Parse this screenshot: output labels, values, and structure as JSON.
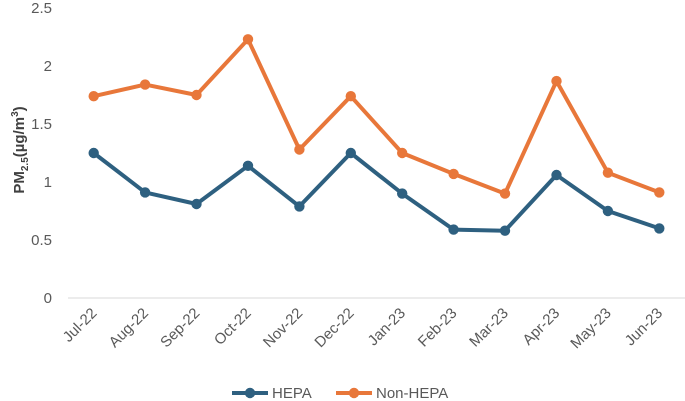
{
  "chart_data": {
    "type": "line",
    "title": "",
    "xlabel": "",
    "ylabel": "PM2.5(µg/m3)",
    "ylabel_parts": {
      "main": "PM",
      "sub": "2.5",
      "unit_open": "(µg/m",
      "sup": "3",
      "unit_close": ")"
    },
    "ylim": [
      0,
      2.5
    ],
    "yticks": [
      "0",
      "0.5",
      "1",
      "1.5",
      "2",
      "2.5"
    ],
    "categories": [
      "Jul-22",
      "Aug-22",
      "Sep-22",
      "Oct-22",
      "Nov-22",
      "Dec-22",
      "Jan-23",
      "Feb-23",
      "Mar-23",
      "Apr-23",
      "May-23",
      "Jun-23"
    ],
    "series": [
      {
        "name": "HEPA",
        "color": "#2e6080",
        "values": [
          1.25,
          0.91,
          0.81,
          1.14,
          0.79,
          1.25,
          0.9,
          0.59,
          0.58,
          1.06,
          0.75,
          0.6
        ]
      },
      {
        "name": "Non-HEPA",
        "color": "#e8773a",
        "values": [
          1.74,
          1.84,
          1.75,
          2.23,
          1.28,
          1.74,
          1.25,
          1.07,
          0.9,
          1.87,
          1.08,
          0.91
        ]
      }
    ],
    "grid": false,
    "legend_position": "bottom"
  }
}
